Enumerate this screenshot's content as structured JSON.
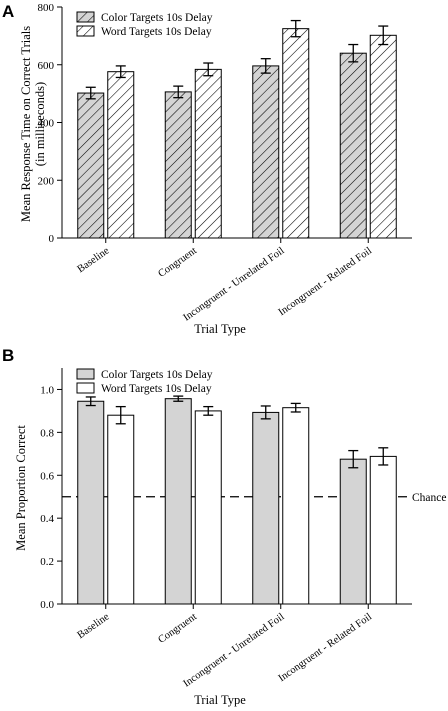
{
  "chart_data": [
    {
      "panel_label": "A",
      "type": "bar",
      "categories": [
        "Baseline",
        "Congruent",
        "Incongruent - Unrelated Foil",
        "Incongruent - Related Foil"
      ],
      "series": [
        {
          "name": "Color Targets 10s Delay",
          "values": [
            502,
            506,
            596,
            640
          ],
          "errors": [
            20,
            20,
            25,
            30
          ],
          "fill": "#d4d4d4",
          "pattern": "diagonal-hatch"
        },
        {
          "name": "Word Targets 10s Delay",
          "values": [
            576,
            584,
            725,
            702
          ],
          "errors": [
            20,
            22,
            28,
            32
          ],
          "fill": "#ffffff",
          "pattern": "diagonal-hatch"
        }
      ],
      "xlabel": "Trial Type",
      "ylabel": "Mean Response Time on Correct Trials",
      "ylabel2": "(in milliseconds)",
      "ylim": [
        0,
        800
      ],
      "yticks": [
        "0",
        "200",
        "400",
        "600",
        "800"
      ],
      "legend_position": "top-left",
      "grid": false
    },
    {
      "panel_label": "B",
      "type": "bar",
      "categories": [
        "Baseline",
        "Congruent",
        "Incongruent - Unrelated Foil",
        "Incongruent - Related Foil"
      ],
      "series": [
        {
          "name": "Color Targets 10s Delay",
          "values": [
            0.945,
            0.957,
            0.893,
            0.675
          ],
          "errors": [
            0.02,
            0.012,
            0.03,
            0.04
          ],
          "fill": "#d4d4d4"
        },
        {
          "name": "Word Targets 10s Delay",
          "values": [
            0.88,
            0.9,
            0.915,
            0.688
          ],
          "errors": [
            0.04,
            0.02,
            0.02,
            0.04
          ],
          "fill": "#ffffff"
        }
      ],
      "xlabel": "Trial Type",
      "ylabel": "Mean Proportion Correct",
      "ylim": [
        0,
        1.1
      ],
      "yticks": [
        "0.0",
        "0.2",
        "0.4",
        "0.6",
        "0.8",
        "1.0"
      ],
      "reference_line": {
        "value": 0.5,
        "label": "Chance",
        "style": "dashed"
      },
      "legend_position": "top-left",
      "grid": false
    }
  ]
}
